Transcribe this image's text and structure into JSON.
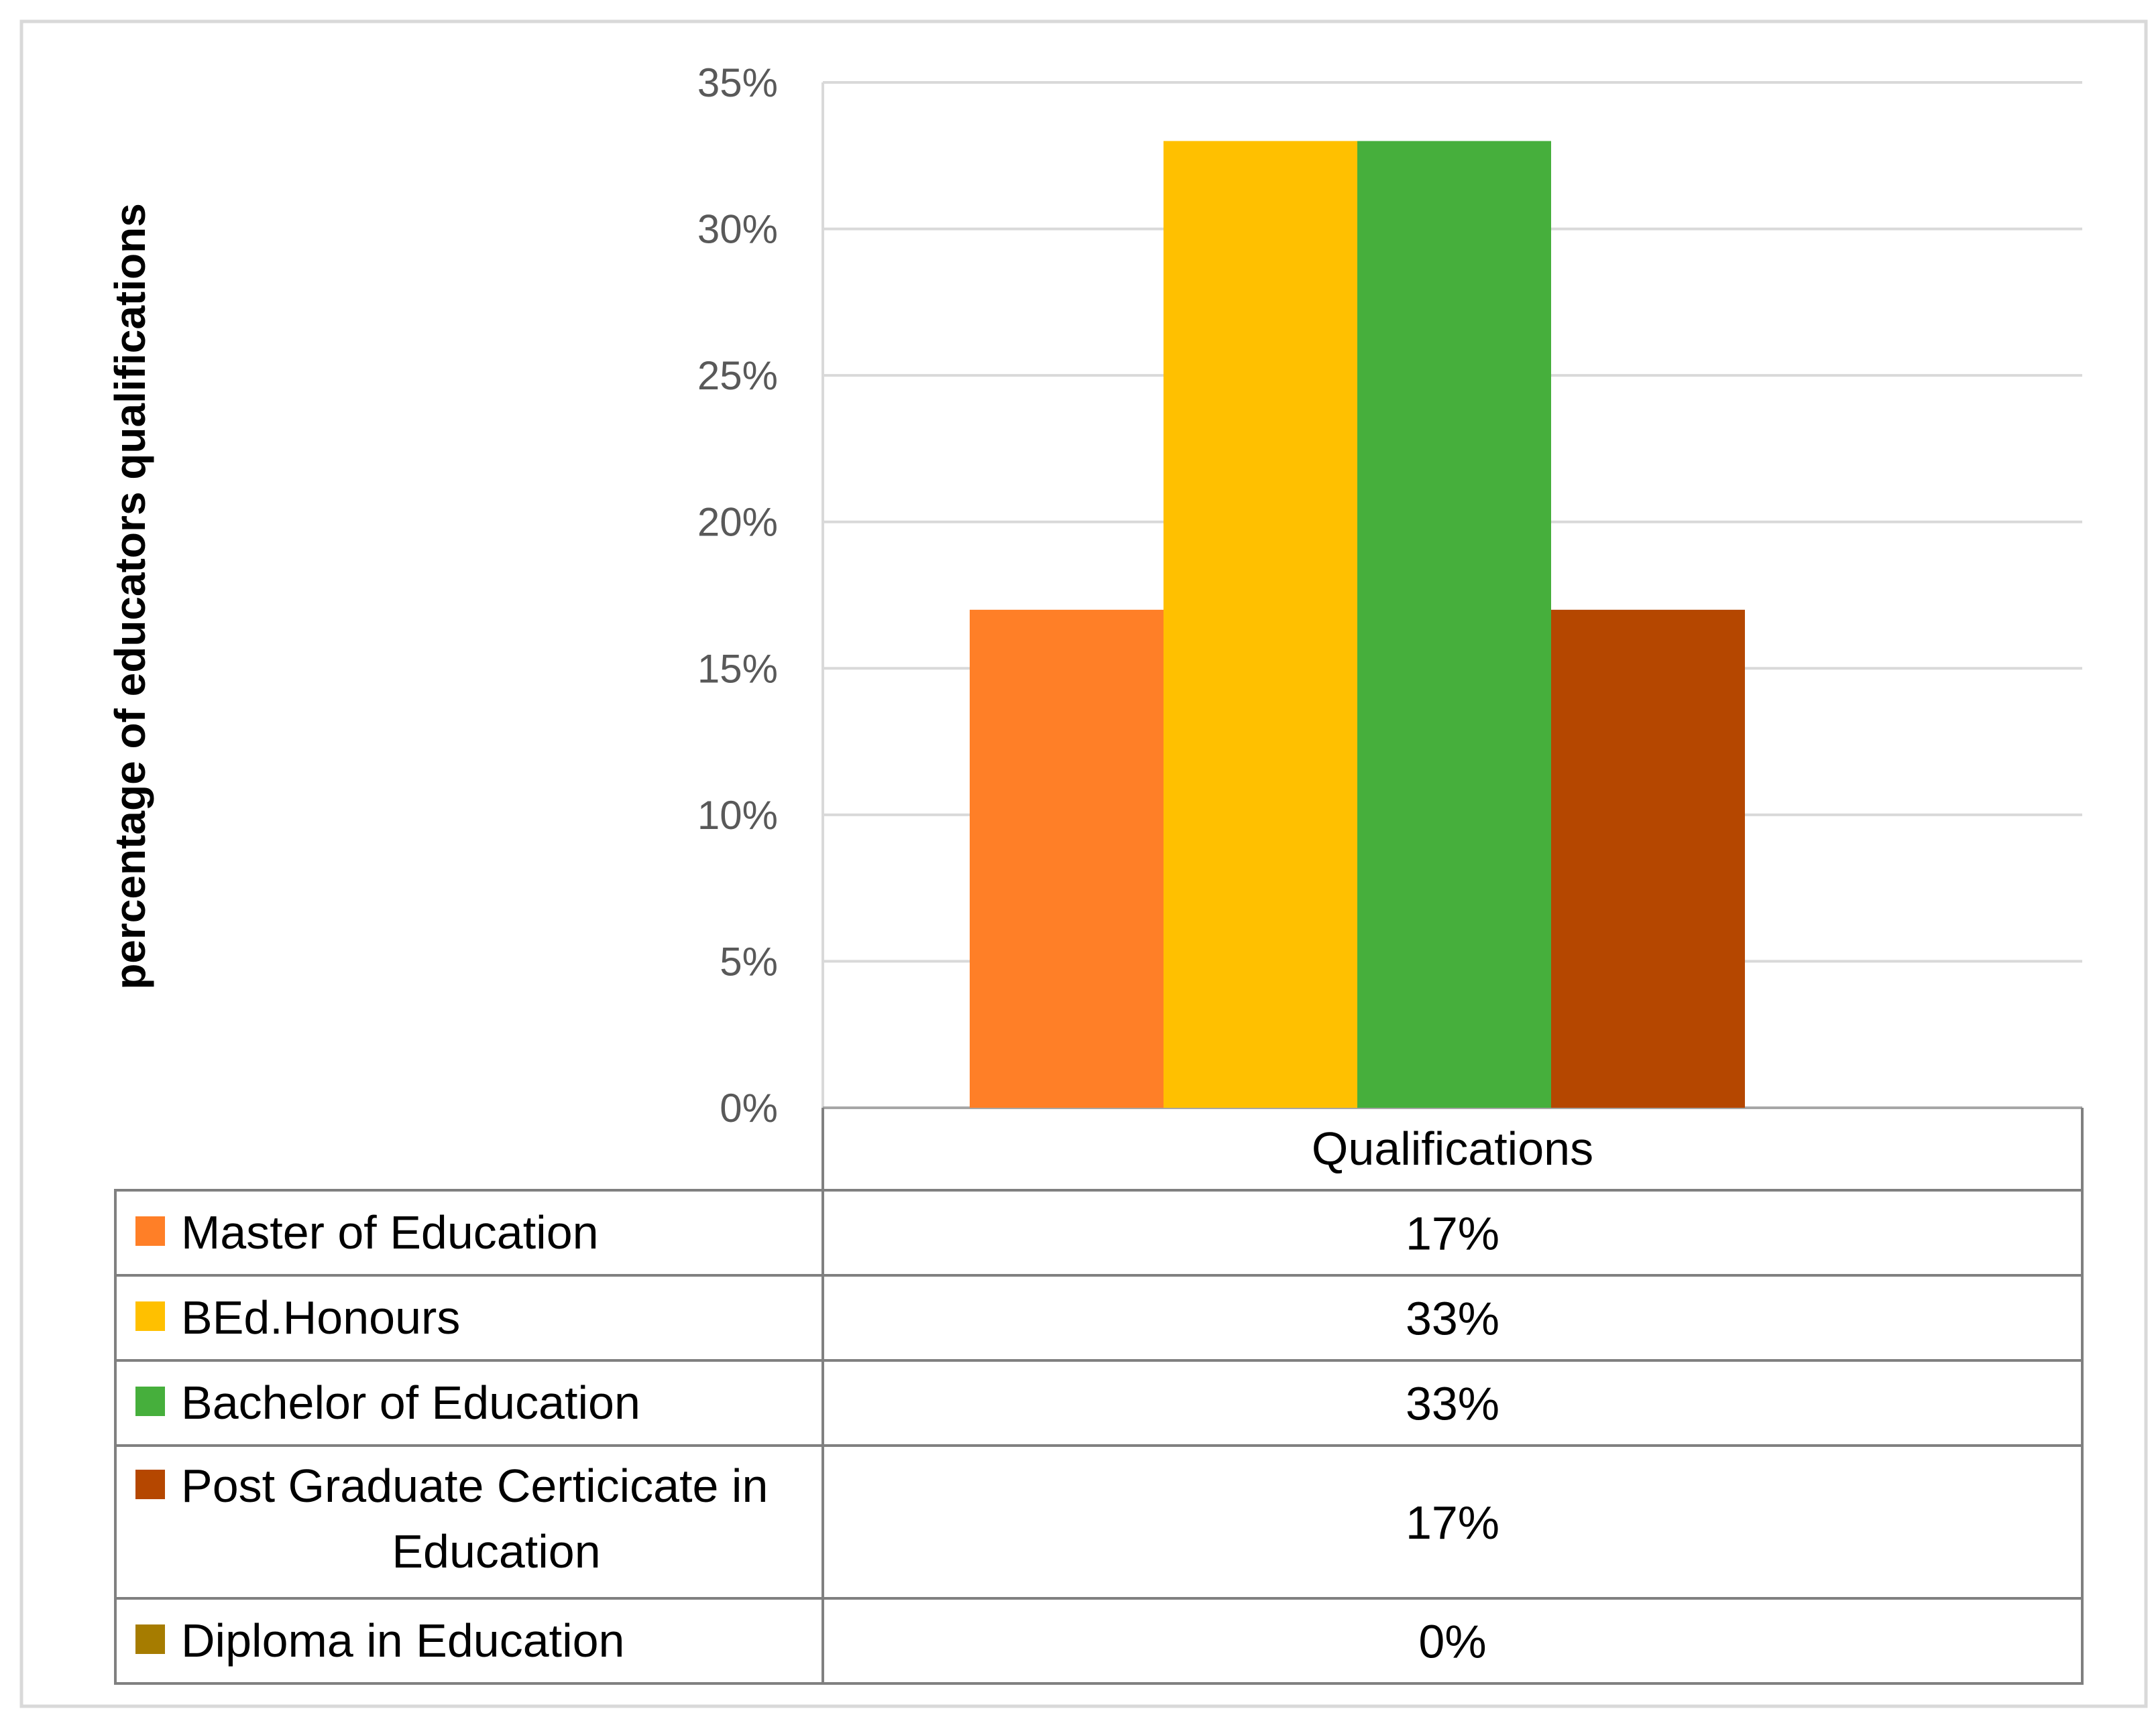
{
  "chart_data": {
    "type": "bar",
    "title": "",
    "xlabel": "",
    "ylabel": "percentage of educators qualifications",
    "categories": [
      "Qualifications"
    ],
    "ylim": [
      0,
      35
    ],
    "yticks": [
      "0%",
      "5%",
      "10%",
      "15%",
      "20%",
      "25%",
      "30%",
      "35%"
    ],
    "ytick_values": [
      0,
      5,
      10,
      15,
      20,
      25,
      30,
      35
    ],
    "grid": true,
    "legend": "data-table below chart",
    "series": [
      {
        "name": "Master of Education",
        "name_lines": [
          "Master of Education"
        ],
        "values": [
          17
        ],
        "label": "17%",
        "color": "#FF7F27"
      },
      {
        "name": "BEd.Honours",
        "name_lines": [
          "BEd.Honours"
        ],
        "values": [
          33
        ],
        "label": "33%",
        "color": "#FFC000"
      },
      {
        "name": "Bachelor of Education",
        "name_lines": [
          "Bachelor of Education"
        ],
        "values": [
          33
        ],
        "label": "33%",
        "color": "#46AF3C"
      },
      {
        "name": "Post Graduate Certicicate in Education",
        "name_lines": [
          "Post Graduate Certicicate in",
          "Education"
        ],
        "values": [
          17
        ],
        "label": "17%",
        "color": "#B54700"
      },
      {
        "name": "Diploma in Education",
        "name_lines": [
          "Diploma in Education"
        ],
        "values": [
          0
        ],
        "label": "0%",
        "color": "#A67C00"
      }
    ]
  }
}
